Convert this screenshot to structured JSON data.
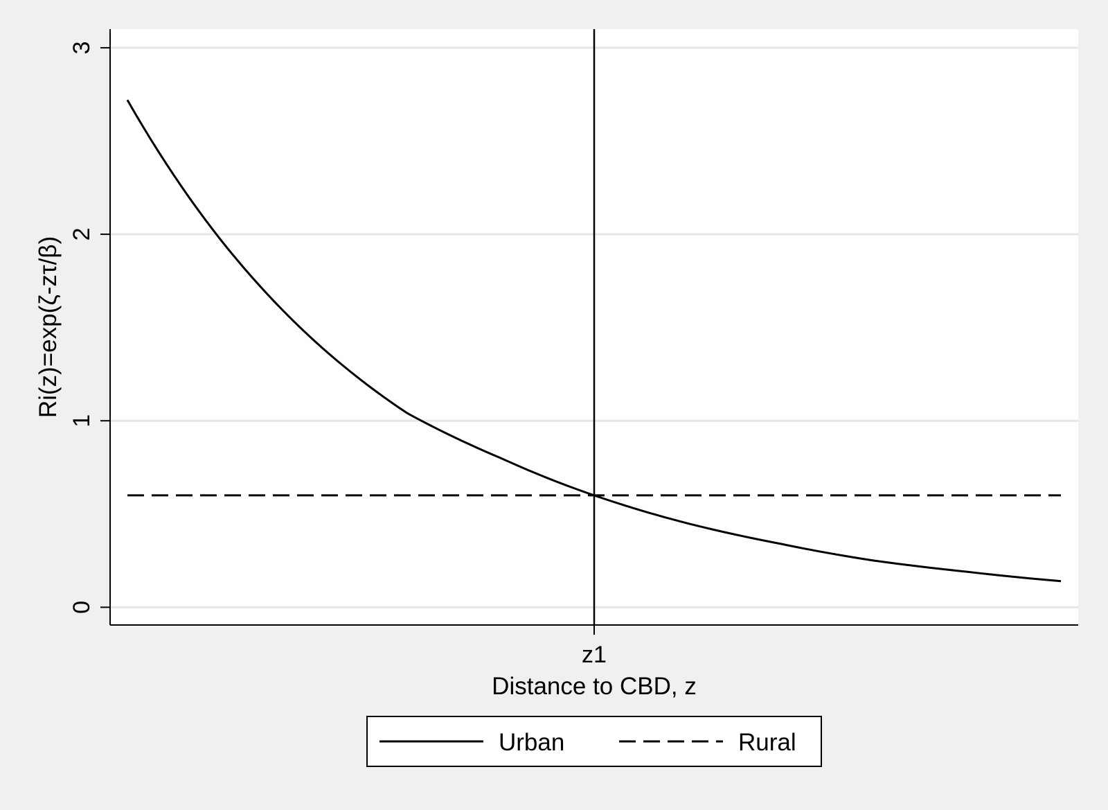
{
  "chart_data": {
    "type": "line",
    "xlabel": "Distance to CBD, z",
    "ylabel": "Ri(z)=exp(ζ-zτ/β)",
    "x_ticks": [
      {
        "label": "z1",
        "value": 0.5
      }
    ],
    "y_ticks": [
      0,
      1,
      2,
      3
    ],
    "xlim": [
      -0.0185,
      1.0185
    ],
    "ylim": [
      -0.095,
      3.1
    ],
    "grid": true,
    "vline": {
      "x": 0.5
    },
    "series": [
      {
        "name": "Urban",
        "style": "solid",
        "color": "#000000",
        "function": "exp",
        "x": [
          0,
          0.1,
          0.2,
          0.3,
          0.4,
          0.5,
          0.6,
          0.7,
          0.8,
          0.9,
          1.0
        ],
        "values": [
          2.72,
          1.97,
          1.43,
          1.04,
          0.8,
          0.6,
          0.45,
          0.34,
          0.25,
          0.19,
          0.14
        ]
      },
      {
        "name": "Rural",
        "style": "dashed",
        "color": "#000000",
        "x": [
          0,
          1.0
        ],
        "values": [
          0.6,
          0.6
        ]
      }
    ],
    "legend": {
      "position": "bottom",
      "entries": [
        "Urban",
        "Rural"
      ]
    }
  }
}
